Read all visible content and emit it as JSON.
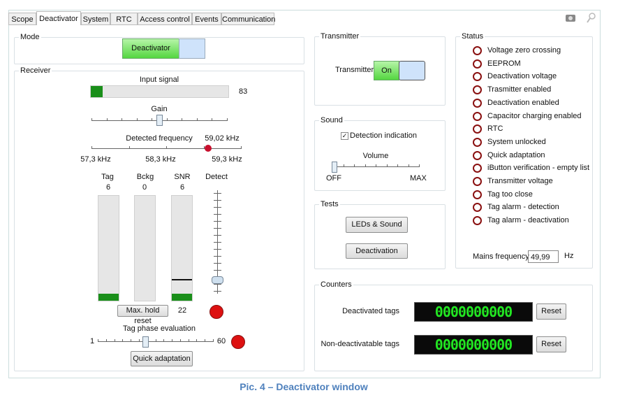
{
  "tabs": [
    "Scope",
    "Deactivator",
    "System",
    "RTC",
    "Access control",
    "Events",
    "Communication"
  ],
  "mode": {
    "title": "Mode",
    "button": "Deactivator"
  },
  "receiver": {
    "title": "Receiver",
    "input_signal": {
      "label": "Input signal",
      "value": "83"
    },
    "gain": {
      "label": "Gain"
    },
    "detected_frequency": {
      "label": "Detected frequency",
      "value": "59,02 kHz",
      "min": "57,3 kHz",
      "mid": "58,3 kHz",
      "max": "59,3 kHz"
    },
    "columns": [
      {
        "label": "Tag",
        "value": "6"
      },
      {
        "label": "Bckg",
        "value": "0"
      },
      {
        "label": "SNR",
        "value": "6"
      },
      {
        "label": "Detect"
      }
    ],
    "max_hold_reset": "Max. hold reset",
    "max_hold_value": "22",
    "tag_phase": {
      "label": "Tag phase evaluation",
      "min": "1",
      "max": "60"
    },
    "quick_adaptation": "Quick adaptation"
  },
  "transmitter": {
    "title": "Transmitter",
    "label": "Transmitter",
    "toggle": "On"
  },
  "sound": {
    "title": "Sound",
    "checkbox": "Detection indication",
    "volume": "Volume",
    "min": "OFF",
    "max": "MAX"
  },
  "tests": {
    "title": "Tests",
    "buttons": [
      "LEDs & Sound",
      "Deactivation"
    ]
  },
  "counters": {
    "title": "Counters",
    "rows": [
      {
        "label": "Deactivated tags",
        "display": "0000000000",
        "button": "Reset"
      },
      {
        "label": "Non-deactivatable tags",
        "display": "0000000000",
        "button": "Reset"
      }
    ]
  },
  "status": {
    "title": "Status",
    "items": [
      "Voltage zero crossing",
      "EEPROM",
      "Deactivation voltage",
      "Trasmitter enabled",
      "Deactivation enabled",
      "Capacitor charging enabled",
      "RTC",
      "System unlocked",
      "Quick adaptation",
      "iButton verification - empty list",
      "Transmitter voltage",
      "Tag too close",
      "Tag alarm - detection",
      "Tag alarm - deactivation"
    ],
    "mains_label": "Mains frequency",
    "mains_value": "49,99",
    "mains_unit": "Hz"
  },
  "caption": "Pic. 4 – Deactivator window"
}
